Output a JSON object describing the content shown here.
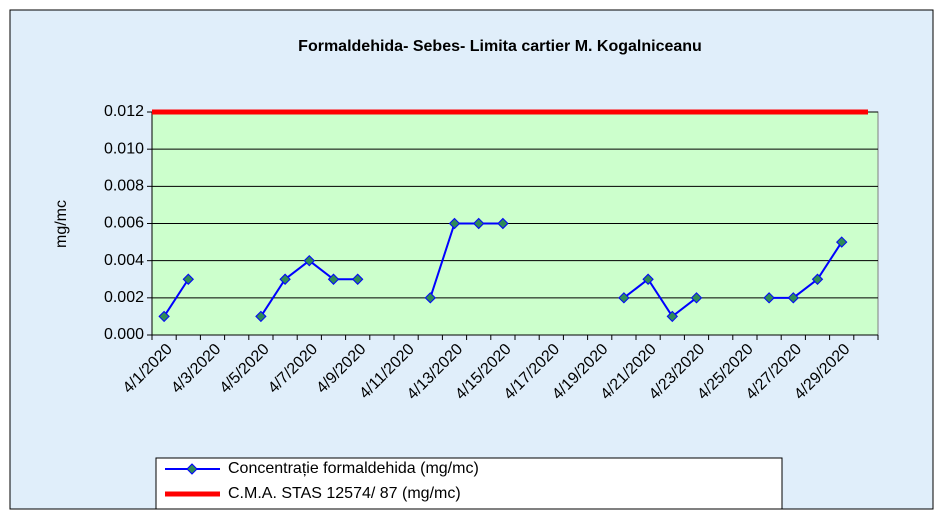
{
  "chart_data": {
    "type": "line",
    "title": "Formaldehida- Sebes- Limita cartier M. Kogalniceanu",
    "y_label": "mg/mc",
    "categories": [
      "4/1/2020",
      null,
      "4/3/2020",
      null,
      "4/5/2020",
      null,
      "4/7/2020",
      null,
      "4/9/2020",
      null,
      "4/11/2020",
      null,
      "4/13/2020",
      null,
      "4/15/2020",
      null,
      "4/17/2020",
      null,
      "4/19/2020",
      null,
      "4/21/2020",
      null,
      "4/23/2020",
      null,
      "4/25/2020",
      null,
      "4/27/2020",
      null,
      "4/29/2020",
      null
    ],
    "series": [
      {
        "name": "Concentrație formaldehida (mg/mc)",
        "color": "#0000ff",
        "marker_color": "#2e8b57",
        "values": [
          0.001,
          0.003,
          null,
          null,
          0.001,
          0.003,
          0.004,
          0.003,
          0.003,
          null,
          null,
          0.002,
          0.006,
          0.006,
          0.006,
          null,
          null,
          null,
          null,
          0.002,
          0.003,
          0.001,
          0.002,
          null,
          null,
          0.002,
          0.002,
          0.003,
          0.005,
          null
        ]
      },
      {
        "name": "C.M.A. STAS 12574/ 87 (mg/mc)",
        "color": "#ff0000",
        "values": [
          0.012,
          0.012,
          0.012,
          0.012,
          0.012,
          0.012,
          0.012,
          0.012,
          0.012,
          0.012,
          0.012,
          0.012,
          0.012,
          0.012,
          0.012,
          0.012,
          0.012,
          0.012,
          0.012,
          0.012,
          0.012,
          0.012,
          0.012,
          0.012,
          0.012,
          0.012,
          0.012,
          0.012,
          0.012,
          0.012
        ]
      }
    ],
    "ylim": [
      0,
      0.012
    ],
    "yticks": [
      {
        "value": 0,
        "label": "0.000"
      },
      {
        "value": 0.002,
        "label": "0.002"
      },
      {
        "value": 0.004,
        "label": "0.004"
      },
      {
        "value": 0.006,
        "label": "0.006"
      },
      {
        "value": 0.008,
        "label": "0.008"
      },
      {
        "value": 0.01,
        "label": "0.010"
      },
      {
        "value": 0.012,
        "label": "0.012"
      }
    ],
    "grid": true,
    "legend": "bottom",
    "background": "#e0eefa",
    "plot_background": "#ccffcc"
  }
}
